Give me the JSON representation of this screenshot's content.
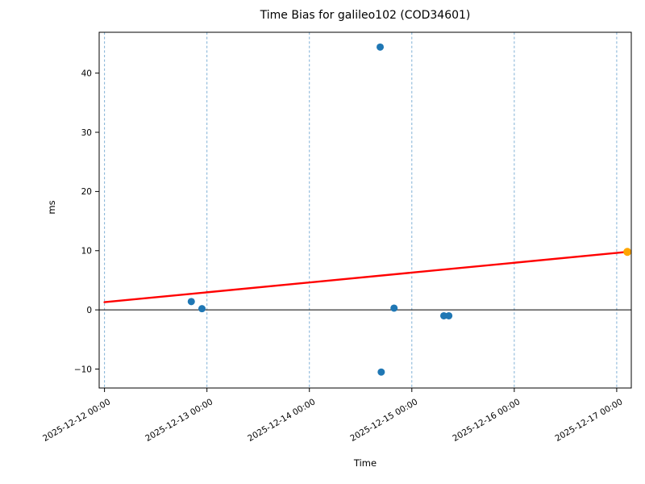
{
  "title": "Time Bias for galileo102 (COD34601)",
  "chart_data": {
    "type": "scatter",
    "title": "Time Bias for galileo102 (COD34601)",
    "xlabel": "Time",
    "ylabel": "ms",
    "xlim": [
      "2025-12-11 22:45",
      "2025-12-17 03:25"
    ],
    "ylim": [
      -13.2,
      46.9
    ],
    "x_ticks": [
      "2025-12-12 00:00",
      "2025-12-13 00:00",
      "2025-12-14 00:00",
      "2025-12-15 00:00",
      "2025-12-16 00:00",
      "2025-12-17 00:00"
    ],
    "y_ticks": [
      {
        "value": -10,
        "label": "−10"
      },
      {
        "value": 0,
        "label": "0"
      },
      {
        "value": 10,
        "label": "10"
      },
      {
        "value": 20,
        "label": "20"
      },
      {
        "value": 30,
        "label": "30"
      },
      {
        "value": 40,
        "label": "40"
      }
    ],
    "grid": {
      "vertical_dashed": true,
      "horizontal": false
    },
    "zero_line": 0,
    "legend": "none",
    "series": [
      {
        "name": "trend-line",
        "type": "line",
        "color": "#ff0000",
        "width": 2.4,
        "points": [
          {
            "time": "2025-12-12 00:00",
            "ms": 1.3
          },
          {
            "time": "2025-12-17 02:30",
            "ms": 9.8
          }
        ]
      },
      {
        "name": "bias-point",
        "type": "scatter",
        "color": "#1f77b4",
        "marker_radius": 4.5,
        "points": [
          {
            "time": "2025-12-12 20:20",
            "ms": 1.4
          },
          {
            "time": "2025-12-12 22:50",
            "ms": 0.2
          },
          {
            "time": "2025-12-14 16:35",
            "ms": 44.4
          },
          {
            "time": "2025-12-14 16:50",
            "ms": -10.5
          },
          {
            "time": "2025-12-14 19:50",
            "ms": 0.3
          },
          {
            "time": "2025-12-15 07:30",
            "ms": -1.0
          },
          {
            "time": "2025-12-15 08:40",
            "ms": -1.0
          }
        ]
      },
      {
        "name": "latest-bias-point",
        "type": "scatter",
        "color": "#ffa500",
        "marker_radius": 5,
        "points": [
          {
            "time": "2025-12-17 02:30",
            "ms": 9.8
          }
        ]
      }
    ],
    "colors": {
      "scatter": "#1f77b4",
      "latest": "#ffa500",
      "trend": "#ff0000",
      "grid": "#7fb0d6",
      "axis": "#000000"
    }
  }
}
